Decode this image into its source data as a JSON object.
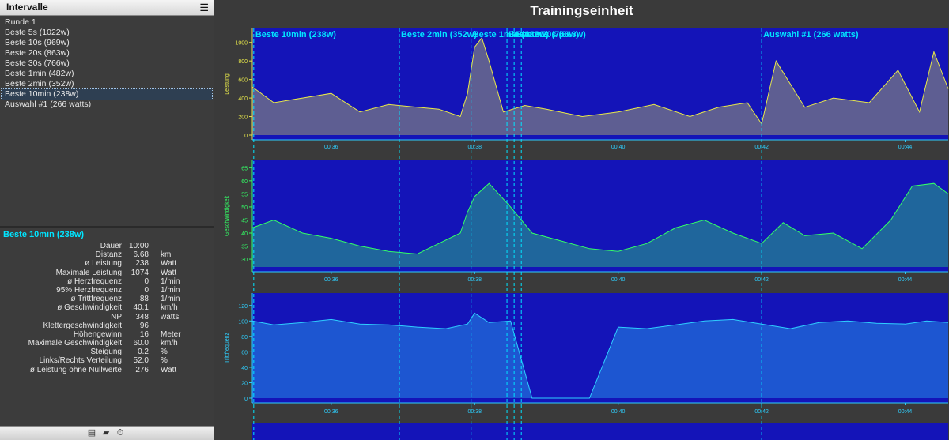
{
  "left_panel": {
    "title": "Intervalle",
    "intervals": [
      "Runde 1",
      "Beste 5s (1022w)",
      "Beste 10s (969w)",
      "Beste 20s (863w)",
      "Beste 30s (766w)",
      "Beste 1min (482w)",
      "Beste 2min (352w)",
      "Beste 10min (238w)",
      "Auswahl #1 (266 watts)"
    ],
    "selected_index": 7,
    "summary": {
      "title": "Beste 10min (238w)",
      "metrics": [
        {
          "label": "Dauer",
          "value": "10:00",
          "unit": ""
        },
        {
          "label": "Distanz",
          "value": "6.68",
          "unit": "km"
        },
        {
          "label": "ø Leistung",
          "value": "238",
          "unit": "Watt"
        },
        {
          "label": "Maximale Leistung",
          "value": "1074",
          "unit": "Watt"
        },
        {
          "label": "ø Herzfrequenz",
          "value": "0",
          "unit": "1/min"
        },
        {
          "label": "95% Herzfrequenz",
          "value": "0",
          "unit": "1/min"
        },
        {
          "label": "ø Trittfrequenz",
          "value": "88",
          "unit": "1/min"
        },
        {
          "label": "ø Geschwindigkeit",
          "value": "40.1",
          "unit": "km/h"
        },
        {
          "label": "NP",
          "value": "348",
          "unit": "watts"
        },
        {
          "label": "Klettergeschwindigkeit",
          "value": "96",
          "unit": ""
        },
        {
          "label": "Höhengewinn",
          "value": "16",
          "unit": "Meter"
        },
        {
          "label": "Maximale Geschwindigkeit",
          "value": "60.0",
          "unit": "km/h"
        },
        {
          "label": "Steigung",
          "value": "0.2",
          "unit": "%"
        },
        {
          "label": "Links/Rechts Verteilung",
          "value": "52.0",
          "unit": "%"
        },
        {
          "label": "ø Leistung ohne Nullwerte",
          "value": "276",
          "unit": "Watt"
        }
      ]
    },
    "footer_icons": [
      "list-icon",
      "folder-icon",
      "stopwatch-icon"
    ]
  },
  "main": {
    "title": "Trainingseinheit",
    "x_ticks": [
      "00:36",
      "00:38",
      "00:40",
      "00:42",
      "00:44"
    ],
    "interval_markers": [
      {
        "label": "Beste 10min (238w)"
      },
      {
        "label": "Beste 2min (352w)"
      },
      {
        "label": "Beste 1min (482w)"
      },
      {
        "label": "Beste 30s (766w)"
      },
      {
        "label": "Beste 20s (863w)"
      },
      {
        "label": "Auswahl #1 (266 watts)"
      }
    ]
  },
  "chart_data": [
    {
      "type": "area",
      "ylabel": "Leistung",
      "ylim": [
        0,
        1100
      ],
      "y_ticks": [
        0,
        200,
        400,
        600,
        800,
        1000
      ],
      "x_minutes": [
        34.9,
        35.2,
        35.6,
        36.0,
        36.4,
        36.8,
        37.2,
        37.5,
        37.8,
        37.9,
        38.0,
        38.1,
        38.2,
        38.4,
        38.7,
        39.0,
        39.5,
        40.0,
        40.5,
        41.0,
        41.4,
        41.8,
        42.0,
        42.2,
        42.6,
        43.0,
        43.5,
        43.9,
        44.2,
        44.4,
        44.6
      ],
      "values": [
        520,
        350,
        400,
        450,
        250,
        330,
        300,
        280,
        200,
        450,
        950,
        1050,
        800,
        250,
        320,
        280,
        200,
        250,
        330,
        200,
        300,
        350,
        120,
        800,
        300,
        400,
        350,
        700,
        250,
        900,
        500
      ],
      "color": "#e8e84a"
    },
    {
      "type": "area",
      "ylabel": "Geschwindigkeit",
      "ylim": [
        27,
        66
      ],
      "y_ticks": [
        30,
        35,
        40,
        45,
        50,
        55,
        60,
        65
      ],
      "x_minutes": [
        34.9,
        35.2,
        35.6,
        36.0,
        36.4,
        36.8,
        37.2,
        37.5,
        37.8,
        37.9,
        38.0,
        38.2,
        38.5,
        38.8,
        39.2,
        39.6,
        40.0,
        40.4,
        40.8,
        41.2,
        41.6,
        42.0,
        42.3,
        42.6,
        43.0,
        43.4,
        43.8,
        44.1,
        44.4,
        44.6
      ],
      "values": [
        42,
        45,
        40,
        38,
        35,
        33,
        32,
        36,
        40,
        48,
        54,
        59,
        50,
        40,
        37,
        34,
        33,
        36,
        42,
        45,
        40,
        36,
        44,
        39,
        40,
        34,
        45,
        58,
        59,
        55
      ],
      "color": "#33ff66"
    },
    {
      "type": "area",
      "ylabel": "Trittfrequenz",
      "ylim": [
        0,
        130
      ],
      "y_ticks": [
        0,
        20,
        40,
        60,
        80,
        100,
        120
      ],
      "x_minutes": [
        34.9,
        35.2,
        35.6,
        36.0,
        36.4,
        36.8,
        37.2,
        37.6,
        37.9,
        38.0,
        38.2,
        38.5,
        38.8,
        39.2,
        39.6,
        40.0,
        40.4,
        40.8,
        41.2,
        41.6,
        42.0,
        42.4,
        42.8,
        43.2,
        43.6,
        44.0,
        44.3,
        44.6
      ],
      "values": [
        100,
        95,
        98,
        102,
        96,
        95,
        92,
        90,
        96,
        110,
        98,
        100,
        0,
        0,
        0,
        92,
        90,
        95,
        100,
        102,
        96,
        90,
        98,
        100,
        97,
        96,
        100,
        98
      ],
      "color": "#2ed0ff"
    }
  ]
}
